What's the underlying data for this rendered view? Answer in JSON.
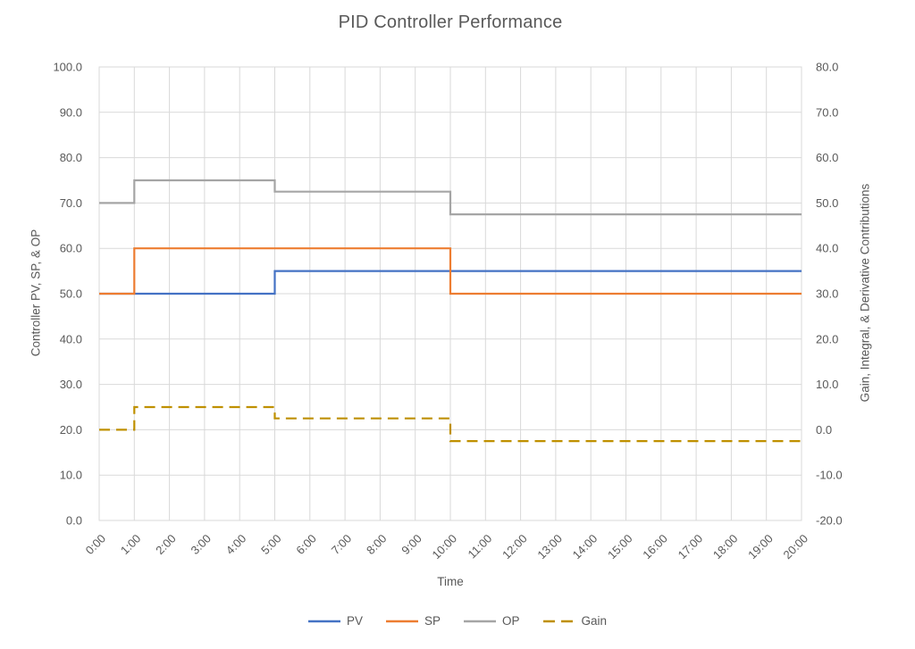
{
  "chart_data": {
    "type": "line",
    "title": "PID Controller Performance",
    "x_axis": {
      "label": "Time",
      "min": 0,
      "max": 20,
      "ticks": [
        "0:00",
        "1:00",
        "2:00",
        "3:00",
        "4:00",
        "5:00",
        "6:00",
        "7:00",
        "8:00",
        "9:00",
        "10:00",
        "11:00",
        "12:00",
        "13:00",
        "14:00",
        "15:00",
        "16:00",
        "17:00",
        "18:00",
        "19:00",
        "20:00"
      ]
    },
    "y_axis_left": {
      "label": "Controller PV, SP, & OP",
      "min": 0,
      "max": 100,
      "step": 10,
      "tick_decimals": 1
    },
    "y_axis_right": {
      "label": "Gain, Integral, & Derivative Contributions",
      "min": -20,
      "max": 80,
      "step": 10,
      "tick_decimals": 1
    },
    "grid": true,
    "legend_position": "bottom",
    "series": [
      {
        "name": "PV",
        "axis": "left",
        "color": "#4472C4",
        "line_style": "solid",
        "points": [
          [
            0,
            50
          ],
          [
            5,
            50
          ],
          [
            5,
            55
          ],
          [
            20,
            55
          ]
        ]
      },
      {
        "name": "SP",
        "axis": "left",
        "color": "#ED7D31",
        "line_style": "solid",
        "points": [
          [
            0,
            50
          ],
          [
            1,
            50
          ],
          [
            1,
            60
          ],
          [
            10,
            60
          ],
          [
            10,
            50
          ],
          [
            20,
            50
          ]
        ]
      },
      {
        "name": "OP",
        "axis": "left",
        "color": "#A5A5A5",
        "line_style": "solid",
        "points": [
          [
            0,
            70
          ],
          [
            1,
            70
          ],
          [
            1,
            75
          ],
          [
            5,
            75
          ],
          [
            5,
            72.5
          ],
          [
            10,
            72.5
          ],
          [
            10,
            67.5
          ],
          [
            20,
            67.5
          ]
        ]
      },
      {
        "name": "Gain",
        "axis": "right",
        "color": "#BF9000",
        "line_style": "dashed",
        "points": [
          [
            0,
            0
          ],
          [
            1,
            0
          ],
          [
            1,
            5
          ],
          [
            5,
            5
          ],
          [
            5,
            2.5
          ],
          [
            10,
            2.5
          ],
          [
            10,
            -2.5
          ],
          [
            20,
            -2.5
          ]
        ]
      }
    ],
    "colors": {
      "text": "#595959",
      "grid": "#D9D9D9",
      "background": "#FFFFFF"
    }
  }
}
